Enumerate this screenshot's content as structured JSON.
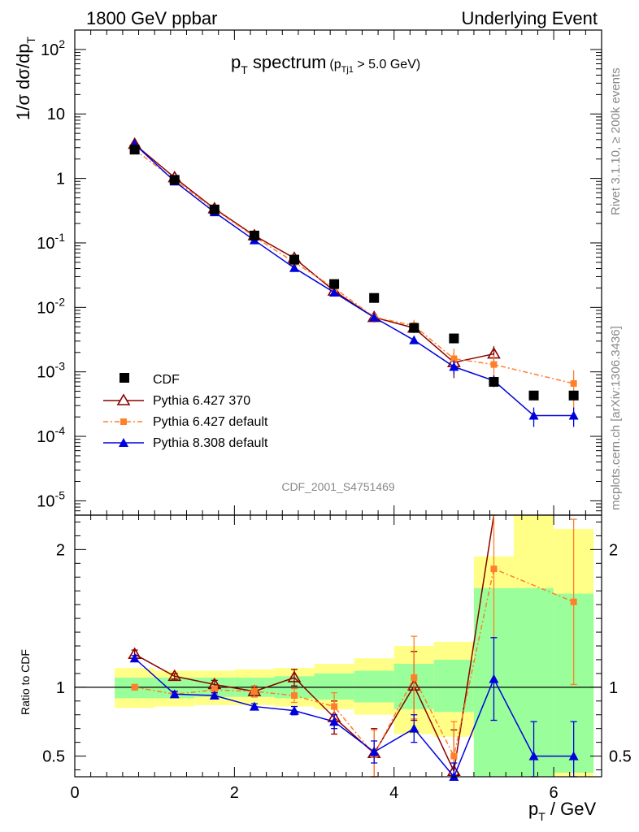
{
  "header": {
    "left": "1800 GeV ppbar",
    "right": "Underlying Event"
  },
  "side_text": {
    "top": "Rivet 3.1.10, ≥ 200k events",
    "bottom": "mcplots.cern.ch [arXiv:1306.3436]"
  },
  "main_panel": {
    "title_main": "p",
    "title_main_sub": "T",
    "title_main_rest": " spectrum",
    "title_cut_p": "(p",
    "title_cut_sub": "Tj1",
    "title_cut_rest": " > 5.0 GeV)",
    "analysis_tag": "CDF_2001_S4751469",
    "ylabel": "1/σ dσ/dp",
    "ylabel_sub": "T"
  },
  "ratio_panel": {
    "ylabel": "Ratio to CDF"
  },
  "xaxis": {
    "label_p": "p",
    "label_sub": "T",
    "label_rest": " / GeV",
    "ticks": [
      "0",
      "2",
      "4",
      "6"
    ]
  },
  "legend": [
    {
      "label": "CDF"
    },
    {
      "label": "Pythia 6.427 370"
    },
    {
      "label": "Pythia 6.427 default"
    },
    {
      "label": "Pythia 8.308 default"
    }
  ],
  "chart_data": {
    "type": "line",
    "xlim": [
      0,
      6.6
    ],
    "main_ylim": [
      6e-06,
      200
    ],
    "main_log": true,
    "main_yticks": [
      "10^-5",
      "10^-4",
      "10^-3",
      "10^-2",
      "10^-1",
      "1",
      "10",
      "10^2"
    ],
    "ratio_ylim": [
      0.35,
      2.25
    ],
    "ratio_yticks": [
      "0.5",
      "1",
      "2"
    ],
    "colors": {
      "data": "#000000",
      "p6_370": "#8b0000",
      "p6_default": "#ff7f2a",
      "p8_default": "#0000dd",
      "band_inner": "#9aff9a",
      "band_outer": "#ffff88"
    },
    "x": [
      0.75,
      1.25,
      1.75,
      2.25,
      2.75,
      3.25,
      3.75,
      4.25,
      4.75,
      5.25,
      5.75,
      6.25
    ],
    "cdf": [
      2.8,
      0.95,
      0.33,
      0.13,
      0.055,
      0.023,
      0.014,
      0.0048,
      0.0033,
      0.0007,
      0.00043,
      0.00043
    ],
    "bands": [
      {
        "x0": 0.5,
        "x1": 1.0,
        "inner": [
          0.92,
          1.07
        ],
        "outer": [
          0.85,
          1.14
        ]
      },
      {
        "x0": 1.0,
        "x1": 1.5,
        "inner": [
          0.92,
          1.07
        ],
        "outer": [
          0.86,
          1.12
        ]
      },
      {
        "x0": 1.5,
        "x1": 2.0,
        "inner": [
          0.93,
          1.07
        ],
        "outer": [
          0.87,
          1.12
        ]
      },
      {
        "x0": 2.0,
        "x1": 2.5,
        "inner": [
          0.93,
          1.07
        ],
        "outer": [
          0.87,
          1.13
        ]
      },
      {
        "x0": 2.5,
        "x1": 3.0,
        "inner": [
          0.92,
          1.08
        ],
        "outer": [
          0.86,
          1.14
        ]
      },
      {
        "x0": 3.0,
        "x1": 3.5,
        "inner": [
          0.91,
          1.1
        ],
        "outer": [
          0.84,
          1.17
        ]
      },
      {
        "x0": 3.5,
        "x1": 4.0,
        "inner": [
          0.89,
          1.12
        ],
        "outer": [
          0.8,
          1.21
        ]
      },
      {
        "x0": 4.0,
        "x1": 4.5,
        "inner": [
          0.84,
          1.17
        ],
        "outer": [
          0.66,
          1.3
        ]
      },
      {
        "x0": 4.5,
        "x1": 5.0,
        "inner": [
          0.82,
          1.2
        ],
        "outer": [
          0.64,
          1.33
        ]
      },
      {
        "x0": 5.0,
        "x1": 5.5,
        "inner": [
          0.35,
          1.72
        ],
        "outer": [
          0.35,
          1.95
        ]
      },
      {
        "x0": 5.5,
        "x1": 6.0,
        "inner": [
          0.35,
          1.72
        ],
        "outer": [
          0.35,
          2.25
        ]
      },
      {
        "x0": 6.0,
        "x1": 6.5,
        "inner": [
          0.38,
          1.68
        ],
        "outer": [
          0.35,
          2.15
        ]
      }
    ],
    "series": [
      {
        "name": "Pythia 6.427 370",
        "key": "p6_370",
        "marker": "triangle-open",
        "dash": "",
        "main_x": [
          0.75,
          1.25,
          1.75,
          2.25,
          2.75,
          3.25,
          3.75,
          4.25,
          4.75,
          5.25
        ],
        "main_y": [
          3.4,
          1.03,
          0.34,
          0.13,
          0.058,
          0.018,
          0.007,
          0.0048,
          0.0014,
          0.0019
        ],
        "ratio_x": [
          0.75,
          1.25,
          1.75,
          2.25,
          2.75,
          3.25,
          3.75,
          4.25,
          4.75,
          5.25
        ],
        "ratio_y": [
          1.24,
          1.08,
          1.02,
          0.97,
          1.07,
          0.78,
          0.52,
          1.01,
          0.39,
          2.35
        ],
        "ratio_err": [
          0.03,
          0.02,
          0.03,
          0.04,
          0.06,
          0.12,
          0.18,
          0.25,
          0.3,
          0
        ],
        "main_err": [
          0,
          0,
          0,
          0,
          0,
          0,
          0.0012,
          0.0008,
          0.0006,
          0.0006
        ]
      },
      {
        "name": "Pythia 6.427 default",
        "key": "p6_default",
        "marker": "square",
        "dash": "6,3,2,3",
        "main_x": [
          0.75,
          1.25,
          1.75,
          2.25,
          2.75,
          3.25,
          3.75,
          4.25,
          4.75,
          5.25,
          6.25
        ],
        "main_y": [
          2.8,
          0.95,
          0.33,
          0.125,
          0.05,
          0.02,
          0.0071,
          0.0052,
          0.0016,
          0.0013,
          0.00066
        ],
        "ratio_x": [
          0.75,
          1.25,
          1.75,
          2.25,
          2.75,
          3.25,
          3.75,
          4.25,
          4.75,
          5.25,
          6.25
        ],
        "ratio_y": [
          1.0,
          0.95,
          0.98,
          0.97,
          0.94,
          0.86,
          0.51,
          1.07,
          0.5,
          1.86,
          1.62
        ],
        "ratio_err": [
          0.02,
          0.02,
          0.03,
          0.04,
          0.05,
          0.1,
          0.18,
          0.3,
          0.25,
          0.5,
          0.6
        ],
        "main_err": [
          0,
          0,
          0,
          0,
          0,
          0,
          0.0012,
          0.0012,
          0.0007,
          0.0005,
          0.0004
        ]
      },
      {
        "name": "Pythia 8.308 default",
        "key": "p8_default",
        "marker": "triangle",
        "dash": "",
        "main_x": [
          0.75,
          1.25,
          1.75,
          2.25,
          2.75,
          3.25,
          3.75,
          4.25,
          4.75,
          5.25,
          5.75,
          6.25
        ],
        "main_y": [
          3.4,
          0.9,
          0.3,
          0.11,
          0.041,
          0.017,
          0.007,
          0.0031,
          0.0012,
          0.00073,
          0.00021,
          0.00021
        ],
        "ratio_x": [
          0.75,
          1.25,
          1.75,
          2.25,
          2.75,
          3.25,
          3.75,
          4.25,
          4.75,
          5.25,
          5.75,
          6.25
        ],
        "ratio_y": [
          1.21,
          0.95,
          0.94,
          0.86,
          0.83,
          0.75,
          0.53,
          0.7,
          0.35,
          1.06,
          0.5,
          0.5
        ],
        "ratio_err": [
          0.02,
          0.02,
          0.02,
          0.02,
          0.03,
          0.05,
          0.08,
          0.1,
          0.1,
          0.3,
          0.25,
          0.25
        ],
        "main_err": [
          0,
          0,
          0,
          0,
          0,
          0,
          0,
          0,
          0.0003,
          0.00015,
          7e-05,
          7e-05
        ]
      }
    ]
  }
}
